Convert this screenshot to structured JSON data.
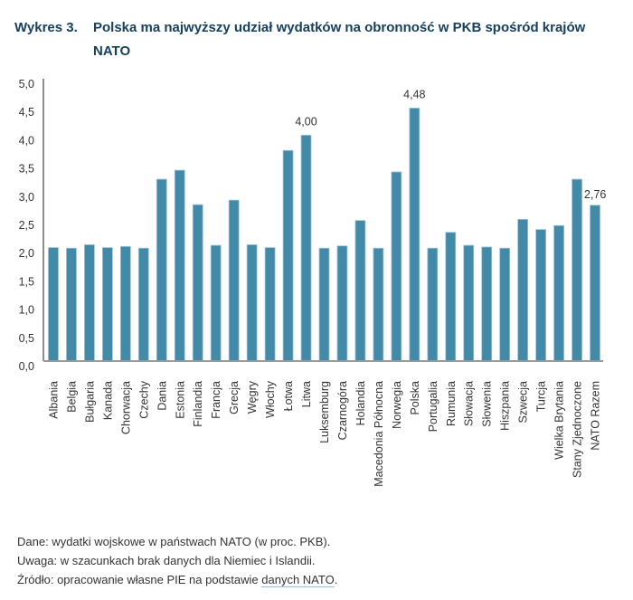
{
  "header": {
    "number": "Wykres 3.",
    "title": "Polska ma najwyższy udział wydatków na obronność w PKB spośród krajów NATO"
  },
  "chart_data": {
    "type": "bar",
    "title": "Polska ma najwyższy udział wydatków na obronność w PKB spośród krajów NATO",
    "xlabel": "",
    "ylabel": "",
    "ylim": [
      0,
      5
    ],
    "yticks": [
      "0,0",
      "0,5",
      "1,0",
      "1,5",
      "2,0",
      "2,5",
      "3,0",
      "3,5",
      "4,0",
      "4,5",
      "5,0"
    ],
    "grid": false,
    "bar_color": "#438aa8",
    "categories": [
      "Albania",
      "Belgia",
      "Bułgaria",
      "Kanada",
      "Chorwacja",
      "Czechy",
      "Dania",
      "Estonia",
      "Finlandia",
      "Francja",
      "Grecja",
      "Węgry",
      "Włochy",
      "Łotwa",
      "Litwa",
      "Luksemburg",
      "Czarnogóra",
      "Holandia",
      "Macedonia Północna",
      "Norwegia",
      "Polska",
      "Portugalia",
      "Rumunia",
      "Słowacja",
      "Słowenia",
      "Hiszpania",
      "Szwecja",
      "Turcja",
      "Wielka Brytania",
      "Stany Zjednoczone",
      "NATO Razem"
    ],
    "values": [
      2.01,
      2.0,
      2.06,
      2.01,
      2.03,
      2.0,
      3.22,
      3.38,
      2.77,
      2.05,
      2.85,
      2.06,
      2.01,
      3.73,
      4.0,
      2.0,
      2.04,
      2.49,
      2.0,
      3.35,
      4.48,
      2.0,
      2.28,
      2.05,
      2.02,
      2.0,
      2.51,
      2.33,
      2.4,
      3.22,
      2.76
    ],
    "data_labels": [
      {
        "category": "Litwa",
        "text": "4,00"
      },
      {
        "category": "Polska",
        "text": "4,48"
      },
      {
        "category": "NATO Razem",
        "text": "2,76"
      }
    ]
  },
  "footer": {
    "data_note": "Dane: wydatki wojskowe w państwach NATO (w proc. PKB).",
    "remark": "Uwaga: w szacunkach brak danych dla Niemiec i Islandii.",
    "source_prefix": "Źródło: opracowanie własne PIE na podstawie ",
    "source_link": "danych NATO",
    "source_suffix": "."
  }
}
